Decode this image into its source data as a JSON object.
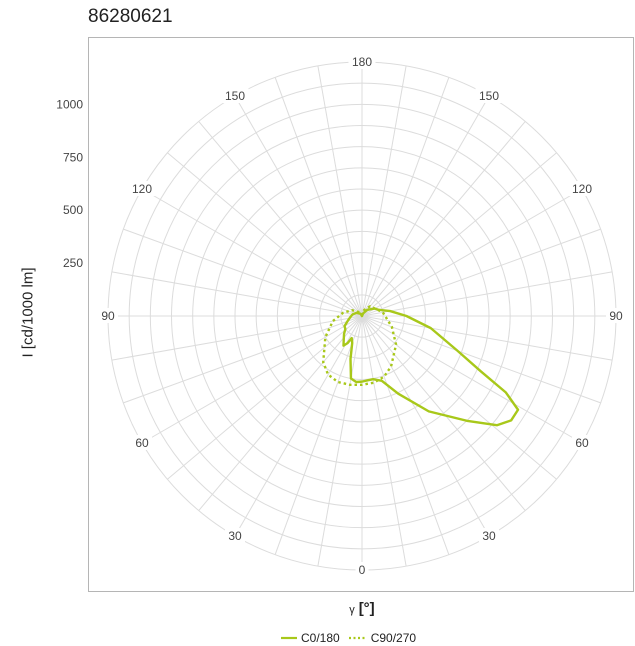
{
  "chart_data": {
    "type": "polar-line",
    "title": "86280621",
    "ylabel": "I [cd/1000 lm]",
    "xlabel_symbol": "γ",
    "xlabel_unit": "[°]",
    "radial_ticks": [
      250,
      500,
      750,
      1000
    ],
    "r_max": 1200,
    "angle_ticks": [
      {
        "label": "180",
        "deg": 0
      },
      {
        "label": "150",
        "deg": 30
      },
      {
        "label": "120",
        "deg": 60
      },
      {
        "label": "90",
        "deg": 90
      },
      {
        "label": "60",
        "deg": 120
      },
      {
        "label": "30",
        "deg": 150
      },
      {
        "label": "0",
        "deg": 180
      },
      {
        "label": "30",
        "deg": 210
      },
      {
        "label": "60",
        "deg": 240
      },
      {
        "label": "90",
        "deg": 270
      },
      {
        "label": "120",
        "deg": 300
      },
      {
        "label": "150",
        "deg": 330
      }
    ],
    "series": [
      {
        "name": "C0/180",
        "color": "#a8c81a",
        "dash": "solid",
        "points": [
          [
            0,
            0
          ],
          [
            20,
            12
          ],
          [
            40,
            38
          ],
          [
            60,
            70
          ],
          [
            70,
            85
          ],
          [
            80,
            135
          ],
          [
            90,
            210
          ],
          [
            100,
            330
          ],
          [
            110,
            480
          ],
          [
            115,
            620
          ],
          [
            118,
            770
          ],
          [
            121,
            860
          ],
          [
            125,
            860
          ],
          [
            129,
            820
          ],
          [
            135,
            700
          ],
          [
            145,
            550
          ],
          [
            155,
            405
          ],
          [
            163,
            320
          ],
          [
            170,
            303
          ],
          [
            175,
            305
          ],
          [
            180,
            310
          ],
          [
            185,
            313
          ],
          [
            190,
            300
          ],
          [
            195,
            210
          ],
          [
            200,
            135
          ],
          [
            205,
            115
          ],
          [
            208,
            145
          ],
          [
            212,
            165
          ],
          [
            218,
            140
          ],
          [
            225,
            120
          ],
          [
            232,
            100
          ],
          [
            240,
            95
          ],
          [
            252,
            70
          ],
          [
            265,
            55
          ],
          [
            280,
            45
          ],
          [
            300,
            30
          ],
          [
            330,
            12
          ],
          [
            360,
            0
          ]
        ]
      },
      {
        "name": "C90/270",
        "color": "#a8c81a",
        "dash": "dotted",
        "points": [
          [
            0,
            0
          ],
          [
            20,
            30
          ],
          [
            40,
            60
          ],
          [
            80,
            100
          ],
          [
            110,
            150
          ],
          [
            130,
            210
          ],
          [
            150,
            275
          ],
          [
            160,
            305
          ],
          [
            170,
            320
          ],
          [
            180,
            325
          ],
          [
            190,
            330
          ],
          [
            200,
            332
          ],
          [
            210,
            320
          ],
          [
            220,
            285
          ],
          [
            240,
            200
          ],
          [
            260,
            140
          ],
          [
            280,
            90
          ],
          [
            300,
            55
          ],
          [
            330,
            20
          ],
          [
            360,
            0
          ]
        ]
      }
    ]
  }
}
